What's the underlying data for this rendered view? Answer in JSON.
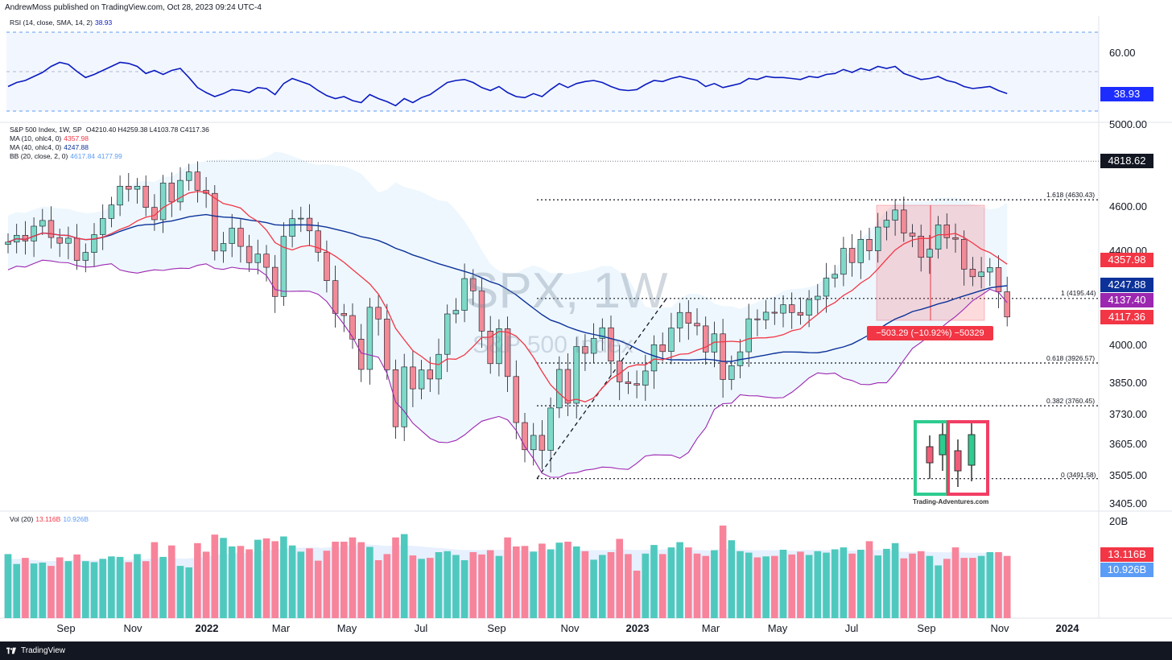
{
  "header": {
    "published": "AndrewMoss published on TradingView.com, Oct 28, 2023 09:24 UTC-4"
  },
  "footer": {
    "brand": "TradingView"
  },
  "rsi_pane": {
    "label": "RSI (14, close, SMA, 14, 2)",
    "value": "38.93",
    "axis_label": "60.00",
    "tag": "38.93",
    "color": "#0a1bbf"
  },
  "price_pane": {
    "title": "S&P 500 Index, 1W, SP",
    "ohlc": "O4210.40  H4259.38  L4103.78  C4117.36",
    "legend": [
      {
        "label": "MA (10, ohlc4, 0)",
        "value": "4357.98",
        "color": "#f23645"
      },
      {
        "label": "MA (40, ohlc4, 0)",
        "value": "4247.88",
        "color": "#0c3299"
      },
      {
        "label": "BB (20, close, 2, 0)",
        "value": "4617.84",
        "value2": "4177.99",
        "color": "#5b9cf6"
      }
    ],
    "axis_labels": [
      "5000.00",
      "4600.00",
      "4400.00",
      "4000.00",
      "3850.00",
      "3730.00",
      "3605.00",
      "3505.00",
      "3405.00"
    ],
    "price_tags": [
      {
        "text": "4818.62",
        "color": "#131722"
      },
      {
        "text": "4357.98",
        "color": "#f23645"
      },
      {
        "text": "4247.88",
        "color": "#0c3299"
      },
      {
        "text": "4137.40",
        "color": "#9c27b0"
      },
      {
        "text": "4117.36",
        "color": "#f23645"
      }
    ],
    "fib_levels": [
      "1.618 (4630.43)",
      "1 (4195.44)",
      "0.618 (3926.57)",
      "0.382 (3760.45)",
      "0 (3491.58)"
    ],
    "measure": "−503.29 (−10.92%) −50329",
    "watermark": {
      "symbol": "SPX, 1W",
      "name": "S&P 500 Index"
    },
    "brand": "Trading-Adventures.com"
  },
  "volume_pane": {
    "label": "Vol (20)",
    "value": "13.116B",
    "value2": "10.926B",
    "axis_label": "20B",
    "tags": [
      {
        "text": "13.116B",
        "color": "#f23645"
      },
      {
        "text": "10.926B",
        "color": "#5b9cf6"
      }
    ]
  },
  "time_axis": [
    "Sep",
    "Nov",
    "2022",
    "Mar",
    "May",
    "Jul",
    "Sep",
    "Nov",
    "2023",
    "Mar",
    "May",
    "Jul",
    "Sep",
    "Nov",
    "2024"
  ],
  "colors": {
    "up": "#2bbfa4",
    "down": "#f23645",
    "up_fill": "#7ed9c8",
    "down_fill": "#f28a97"
  },
  "chart_data": {
    "type": "candlestick",
    "symbol": "SPX",
    "interval": "1W",
    "weeks": [
      "2021-08-02",
      "2021-08-09",
      "2021-08-16",
      "2021-08-23",
      "2021-08-30",
      "2021-09-06",
      "2021-09-13",
      "2021-09-20",
      "2021-09-27",
      "2021-10-04",
      "2021-10-11",
      "2021-10-18",
      "2021-10-25",
      "2021-11-01",
      "2021-11-08",
      "2021-11-15",
      "2021-11-22",
      "2021-11-29",
      "2021-12-06",
      "2021-12-13",
      "2021-12-20",
      "2021-12-27",
      "2022-01-03",
      "2022-01-10",
      "2022-01-17",
      "2022-01-24",
      "2022-01-31",
      "2022-02-07",
      "2022-02-14",
      "2022-02-21",
      "2022-02-28",
      "2022-03-07",
      "2022-03-14",
      "2022-03-21",
      "2022-03-28",
      "2022-04-04",
      "2022-04-11",
      "2022-04-18",
      "2022-04-25",
      "2022-05-02",
      "2022-05-09",
      "2022-05-16",
      "2022-05-23",
      "2022-05-30",
      "2022-06-06",
      "2022-06-13",
      "2022-06-20",
      "2022-06-27",
      "2022-07-04",
      "2022-07-11",
      "2022-07-18",
      "2022-07-25",
      "2022-08-01",
      "2022-08-08",
      "2022-08-15",
      "2022-08-22",
      "2022-08-29",
      "2022-09-05",
      "2022-09-12",
      "2022-09-19",
      "2022-09-26",
      "2022-10-03",
      "2022-10-10",
      "2022-10-17",
      "2022-10-24",
      "2022-10-31",
      "2022-11-07",
      "2022-11-14",
      "2022-11-21",
      "2022-11-28",
      "2022-12-05",
      "2022-12-12",
      "2022-12-19",
      "2022-12-26",
      "2023-01-02",
      "2023-01-09",
      "2023-01-16",
      "2023-01-23",
      "2023-01-30",
      "2023-02-06",
      "2023-02-13",
      "2023-02-20",
      "2023-02-27",
      "2023-03-06",
      "2023-03-13",
      "2023-03-20",
      "2023-03-27",
      "2023-04-03",
      "2023-04-10",
      "2023-04-17",
      "2023-04-24",
      "2023-05-01",
      "2023-05-08",
      "2023-05-15",
      "2023-05-22",
      "2023-05-29",
      "2023-06-05",
      "2023-06-12",
      "2023-06-19",
      "2023-06-26",
      "2023-07-03",
      "2023-07-10",
      "2023-07-17",
      "2023-07-24",
      "2023-07-31",
      "2023-08-07",
      "2023-08-14",
      "2023-08-21",
      "2023-08-28",
      "2023-09-04",
      "2023-09-11",
      "2023-09-18",
      "2023-09-25",
      "2023-10-02",
      "2023-10-09",
      "2023-10-16",
      "2023-10-23"
    ],
    "close": [
      4437,
      4468,
      4442,
      4509,
      4535,
      4458,
      4432,
      4455,
      4357,
      4391,
      4471,
      4544,
      4605,
      4697,
      4682,
      4697,
      4594,
      4538,
      4712,
      4620,
      4725,
      4766,
      4677,
      4662,
      4397,
      4431,
      4500,
      4418,
      4348,
      4384,
      4328,
      4204,
      4463,
      4543,
      4545,
      4488,
      4392,
      4271,
      4132,
      4123,
      4023,
      3901,
      4158,
      4108,
      3900,
      3675,
      3911,
      3825,
      3899,
      3863,
      3961,
      4130,
      4145,
      4280,
      4228,
      4057,
      3924,
      4067,
      3873,
      3693,
      3585,
      3639,
      3583,
      3752,
      3901,
      3770,
      3992,
      3965,
      4026,
      4071,
      3934,
      3852,
      3845,
      3839,
      3895,
      3999,
      3972,
      4070,
      4136,
      4090,
      4079,
      3970,
      4045,
      3861,
      3916,
      3971,
      4109,
      4105,
      4137,
      4133,
      4169,
      4136,
      4124,
      4191,
      4205,
      4282,
      4298,
      4409,
      4348,
      4450,
      4398,
      4505,
      4536,
      4582,
      4478,
      4464,
      4370,
      4405,
      4515,
      4457,
      4450,
      4320,
      4288,
      4308,
      4327,
      4224,
      4117
    ],
    "volume_b": [
      13.5,
      11.4,
      12.7,
      11.5,
      11.7,
      11.0,
      12.8,
      12.0,
      13.4,
      12.0,
      11.8,
      12.5,
      13.0,
      12.9,
      11.8,
      13.5,
      12.0,
      16.0,
      12.9,
      15.3,
      11.0,
      10.7,
      15.8,
      14.0,
      17.6,
      16.9,
      15.1,
      15.2,
      14.5,
      16.5,
      16.8,
      16.2,
      17.2,
      15.3,
      14.0,
      14.7,
      12.1,
      14.2,
      16.1,
      16.1,
      17.0,
      16.0,
      15.0,
      12.2,
      13.5,
      17.0,
      17.7,
      13.2,
      12.5,
      12.7,
      13.9,
      14.1,
      13.3,
      12.2,
      13.9,
      13.4,
      14.3,
      13.1,
      17.0,
      15.1,
      15.2,
      14.0,
      15.7,
      14.5,
      15.9,
      16.1,
      15.1,
      14.1,
      12.3,
      13.3,
      13.9,
      16.7,
      13.5,
      10.0,
      13.6,
      15.4,
      13.5,
      14.9,
      16.0,
      14.9,
      13.6,
      13.1,
      14.3,
      19.5,
      16.4,
      14.1,
      13.8,
      12.8,
      13.0,
      13.1,
      14.4,
      13.4,
      14.0,
      13.3,
      14.1,
      13.8,
      14.5,
      14.9,
      13.6,
      14.4,
      16.2,
      13.2,
      14.6,
      15.8,
      12.6,
      13.6,
      14.1,
      13.1,
      11.1,
      12.5,
      14.9,
      12.7,
      12.7,
      13.1,
      13.9,
      13.9,
      13.1
    ],
    "rsi": [
      46,
      50,
      52,
      56,
      60,
      66,
      70,
      68,
      61,
      55,
      58,
      62,
      66,
      70,
      69,
      66,
      59,
      62,
      58,
      62,
      64,
      55,
      45,
      40,
      36,
      39,
      43,
      42,
      40,
      45,
      44,
      38,
      49,
      54,
      51,
      48,
      42,
      37,
      34,
      36,
      32,
      30,
      38,
      34,
      31,
      27,
      34,
      30,
      35,
      38,
      44,
      50,
      52,
      53,
      50,
      45,
      42,
      46,
      40,
      36,
      35,
      39,
      36,
      43,
      49,
      45,
      49,
      51,
      52,
      50,
      46,
      43,
      42,
      43,
      48,
      52,
      51,
      54,
      56,
      54,
      52,
      46,
      49,
      45,
      47,
      49,
      54,
      53,
      56,
      55,
      55,
      54,
      53,
      56,
      55,
      58,
      59,
      63,
      60,
      64,
      62,
      66,
      64,
      66,
      59,
      56,
      53,
      54,
      56,
      52,
      50,
      46,
      44,
      45,
      46,
      42,
      38.93
    ],
    "price_ylim": [
      3405,
      5000
    ],
    "fib_levels": [
      {
        "ratio": 1.618,
        "price": 4630.43
      },
      {
        "ratio": 1,
        "price": 4195.44
      },
      {
        "ratio": 0.618,
        "price": 3926.57
      },
      {
        "ratio": 0.382,
        "price": 3760.45
      },
      {
        "ratio": 0,
        "price": 3491.58
      }
    ],
    "all_time_high": 4818.62
  }
}
